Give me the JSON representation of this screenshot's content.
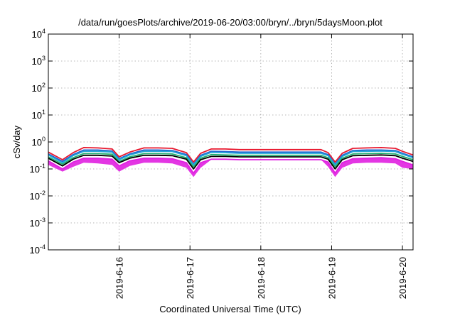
{
  "chart_data": {
    "type": "line",
    "title": "/data/run/goesPlots/archive/2019-06-20/03:00/bryn/../bryn/5daysMoon.plot",
    "xlabel": "Coordinated Universal Time (UTC)",
    "ylabel": "cSv/day",
    "xscale": "time",
    "yscale": "log",
    "xlim": [
      15.0,
      20.15
    ],
    "ylim": [
      0.0001,
      10000
    ],
    "x_ticks": [
      {
        "value": 16,
        "label": "2019-6-16"
      },
      {
        "value": 17,
        "label": "2019-6-17"
      },
      {
        "value": 18,
        "label": "2019-6-18"
      },
      {
        "value": 19,
        "label": "2019-6-19"
      },
      {
        "value": 20,
        "label": "2019-6-20"
      }
    ],
    "y_ticks": [
      {
        "value": 0.0001,
        "base": "10",
        "exp": "-4"
      },
      {
        "value": 0.001,
        "base": "10",
        "exp": "-3"
      },
      {
        "value": 0.01,
        "base": "10",
        "exp": "-2"
      },
      {
        "value": 0.1,
        "base": "10",
        "exp": "-1"
      },
      {
        "value": 1,
        "base": "10",
        "exp": "0"
      },
      {
        "value": 10,
        "base": "10",
        "exp": "1"
      },
      {
        "value": 100,
        "base": "10",
        "exp": "2"
      },
      {
        "value": 1000,
        "base": "10",
        "exp": "3"
      },
      {
        "value": 10000,
        "base": "10",
        "exp": "4"
      }
    ],
    "grid": true,
    "x": [
      15.0,
      15.2,
      15.35,
      15.5,
      15.7,
      15.9,
      16.0,
      16.15,
      16.35,
      16.55,
      16.75,
      16.95,
      17.05,
      17.15,
      17.3,
      17.5,
      17.7,
      18.0,
      18.5,
      18.85,
      18.95,
      19.05,
      19.15,
      19.3,
      19.5,
      19.7,
      19.9,
      20.0,
      20.15
    ],
    "series": [
      {
        "color": "#e8182e",
        "values": [
          0.42,
          0.22,
          0.4,
          0.62,
          0.6,
          0.55,
          0.28,
          0.42,
          0.6,
          0.6,
          0.58,
          0.4,
          0.18,
          0.38,
          0.55,
          0.55,
          0.52,
          0.52,
          0.52,
          0.52,
          0.4,
          0.18,
          0.38,
          0.58,
          0.6,
          0.62,
          0.58,
          0.45,
          0.33
        ]
      },
      {
        "color": "#2060d0",
        "values": [
          0.36,
          0.19,
          0.34,
          0.5,
          0.5,
          0.46,
          0.24,
          0.36,
          0.5,
          0.5,
          0.48,
          0.34,
          0.15,
          0.32,
          0.45,
          0.44,
          0.42,
          0.42,
          0.42,
          0.42,
          0.34,
          0.15,
          0.32,
          0.48,
          0.5,
          0.5,
          0.48,
          0.38,
          0.28
        ]
      },
      {
        "color": "#23a8d8",
        "values": [
          0.33,
          0.17,
          0.31,
          0.45,
          0.45,
          0.42,
          0.22,
          0.33,
          0.45,
          0.45,
          0.44,
          0.31,
          0.14,
          0.29,
          0.41,
          0.4,
          0.38,
          0.38,
          0.38,
          0.38,
          0.31,
          0.14,
          0.29,
          0.44,
          0.45,
          0.46,
          0.44,
          0.35,
          0.26
        ]
      },
      {
        "color": "#20b070",
        "values": [
          0.28,
          0.15,
          0.26,
          0.37,
          0.37,
          0.35,
          0.19,
          0.28,
          0.37,
          0.37,
          0.36,
          0.26,
          0.12,
          0.25,
          0.34,
          0.33,
          0.32,
          0.32,
          0.32,
          0.32,
          0.26,
          0.12,
          0.25,
          0.36,
          0.37,
          0.38,
          0.36,
          0.29,
          0.22
        ]
      },
      {
        "color": "#000000",
        "values": [
          0.25,
          0.13,
          0.23,
          0.32,
          0.32,
          0.3,
          0.17,
          0.25,
          0.32,
          0.32,
          0.31,
          0.23,
          0.1,
          0.22,
          0.29,
          0.29,
          0.28,
          0.28,
          0.28,
          0.28,
          0.23,
          0.1,
          0.22,
          0.31,
          0.32,
          0.33,
          0.31,
          0.25,
          0.19
        ]
      },
      {
        "color": "#e020e0",
        "values": [
          0.2,
          0.1,
          0.18,
          0.25,
          0.25,
          0.23,
          0.13,
          0.2,
          0.25,
          0.25,
          0.24,
          0.17,
          0.07,
          0.17,
          0.23,
          0.23,
          0.22,
          0.22,
          0.22,
          0.22,
          0.18,
          0.07,
          0.17,
          0.24,
          0.25,
          0.26,
          0.24,
          0.19,
          0.14
        ]
      }
    ],
    "band": {
      "color": "#e020e0",
      "values": [
        0.14,
        0.08,
        0.12,
        0.17,
        0.16,
        0.14,
        0.08,
        0.13,
        0.17,
        0.17,
        0.16,
        0.11,
        0.05,
        0.11,
        0.22,
        0.22,
        0.22,
        0.22,
        0.22,
        0.22,
        0.12,
        0.05,
        0.11,
        0.16,
        0.17,
        0.17,
        0.16,
        0.11,
        0.1
      ]
    }
  }
}
